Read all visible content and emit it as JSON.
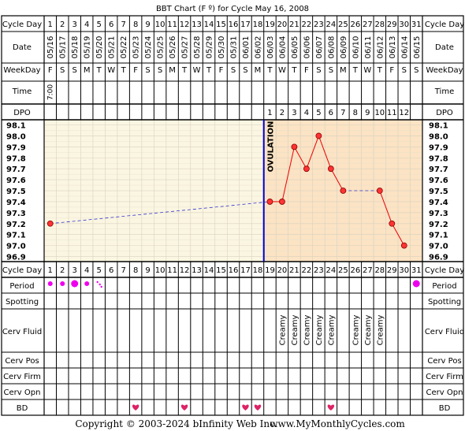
{
  "title": "BBT Chart (F º) for Cycle May 16, 2008",
  "row_labels": {
    "cycle_day": "Cycle Day",
    "date": "Date",
    "weekday": "WeekDay",
    "time": "Time",
    "dpo": "DPO",
    "period": "Period",
    "spotting": "Spotting",
    "cerv_fluid": "Cerv Fluid",
    "cerv_pos": "Cerv Pos",
    "cerv_firm": "Cerv Firm",
    "cerv_opn": "Cerv Opn",
    "bd": "BD"
  },
  "footer": {
    "copyright": "Copyright © 2003-2024 bInfinity Web Inc.",
    "site": "www.MyMonthlyCycles.com"
  },
  "colors": {
    "follicular_bg": "#fbf6e2",
    "luteal_bg": "#fbe3c4",
    "line": "#ee0000",
    "point_fill": "#ff3333",
    "coverline": "#3333cc",
    "ovulation": "#0000cc",
    "period_dot": "#ee00ee",
    "heart": "#dd2266"
  },
  "time_entries": [
    {
      "day": 1,
      "value": "7:00"
    }
  ],
  "period_dots": [
    {
      "day": 1,
      "size": "medium"
    },
    {
      "day": 2,
      "size": "medium"
    },
    {
      "day": 3,
      "size": "large"
    },
    {
      "day": 4,
      "size": "medium"
    },
    {
      "day": 5,
      "size": "tiny"
    },
    {
      "day": 31,
      "size": "large"
    }
  ],
  "cerv_fluid": [
    {
      "day": 20,
      "value": "Creamy"
    },
    {
      "day": 21,
      "value": "Creamy"
    },
    {
      "day": 22,
      "value": "Creamy"
    },
    {
      "day": 23,
      "value": "Creamy"
    },
    {
      "day": 24,
      "value": "Creamy"
    },
    {
      "day": 26,
      "value": "Creamy"
    },
    {
      "day": 27,
      "value": "Creamy"
    },
    {
      "day": 28,
      "value": "Creamy"
    }
  ],
  "bd_days": [
    8,
    12,
    17,
    18,
    24
  ],
  "chart_data": {
    "type": "line",
    "title": "BBT Chart (F º) for Cycle May 16, 2008",
    "x": [
      1,
      2,
      3,
      4,
      5,
      6,
      7,
      8,
      9,
      10,
      11,
      12,
      13,
      14,
      15,
      16,
      17,
      18,
      19,
      20,
      21,
      22,
      23,
      24,
      25,
      26,
      27,
      28,
      29,
      30,
      31
    ],
    "dates": [
      "05/16",
      "05/17",
      "05/18",
      "05/19",
      "05/20",
      "05/21",
      "05/22",
      "05/23",
      "05/24",
      "05/25",
      "05/26",
      "05/27",
      "05/28",
      "05/29",
      "05/30",
      "05/31",
      "06/01",
      "06/02",
      "06/03",
      "06/04",
      "06/05",
      "06/06",
      "06/07",
      "06/08",
      "06/09",
      "06/10",
      "06/11",
      "06/12",
      "06/13",
      "06/14",
      "06/15"
    ],
    "weekdays": [
      "F",
      "S",
      "S",
      "M",
      "T",
      "W",
      "T",
      "F",
      "S",
      "S",
      "M",
      "T",
      "W",
      "T",
      "F",
      "S",
      "S",
      "M",
      "T",
      "W",
      "T",
      "F",
      "S",
      "S",
      "M",
      "T",
      "W",
      "T",
      "F",
      "S",
      "S"
    ],
    "dpo": [
      null,
      null,
      null,
      null,
      null,
      null,
      null,
      null,
      null,
      null,
      null,
      null,
      null,
      null,
      null,
      null,
      null,
      null,
      1,
      2,
      3,
      4,
      5,
      6,
      7,
      8,
      9,
      10,
      11,
      12,
      null
    ],
    "y_ticks": [
      "98.1",
      "98.0",
      "97.9",
      "97.8",
      "97.7",
      "97.6",
      "97.5",
      "97.4",
      "97.3",
      "97.2",
      "97.1",
      "97.0",
      "96.9"
    ],
    "ylim": [
      96.9,
      98.1
    ],
    "series": [
      {
        "points": [
          {
            "x": 1,
            "y": 97.2
          },
          {
            "x": 19,
            "y": 97.4
          },
          {
            "x": 20,
            "y": 97.4
          },
          {
            "x": 21,
            "y": 97.9
          },
          {
            "x": 22,
            "y": 97.7
          },
          {
            "x": 23,
            "y": 98.0
          },
          {
            "x": 24,
            "y": 97.7
          },
          {
            "x": 25,
            "y": 97.5
          },
          {
            "x": 28,
            "y": 97.5
          },
          {
            "x": 29,
            "y": 97.2
          },
          {
            "x": 30,
            "y": 97.0
          }
        ]
      }
    ],
    "ovulation_after_day": 18,
    "ovulation_label": "OVULATION",
    "dashed_segments": [
      [
        1,
        19
      ],
      [
        25,
        28
      ]
    ]
  }
}
